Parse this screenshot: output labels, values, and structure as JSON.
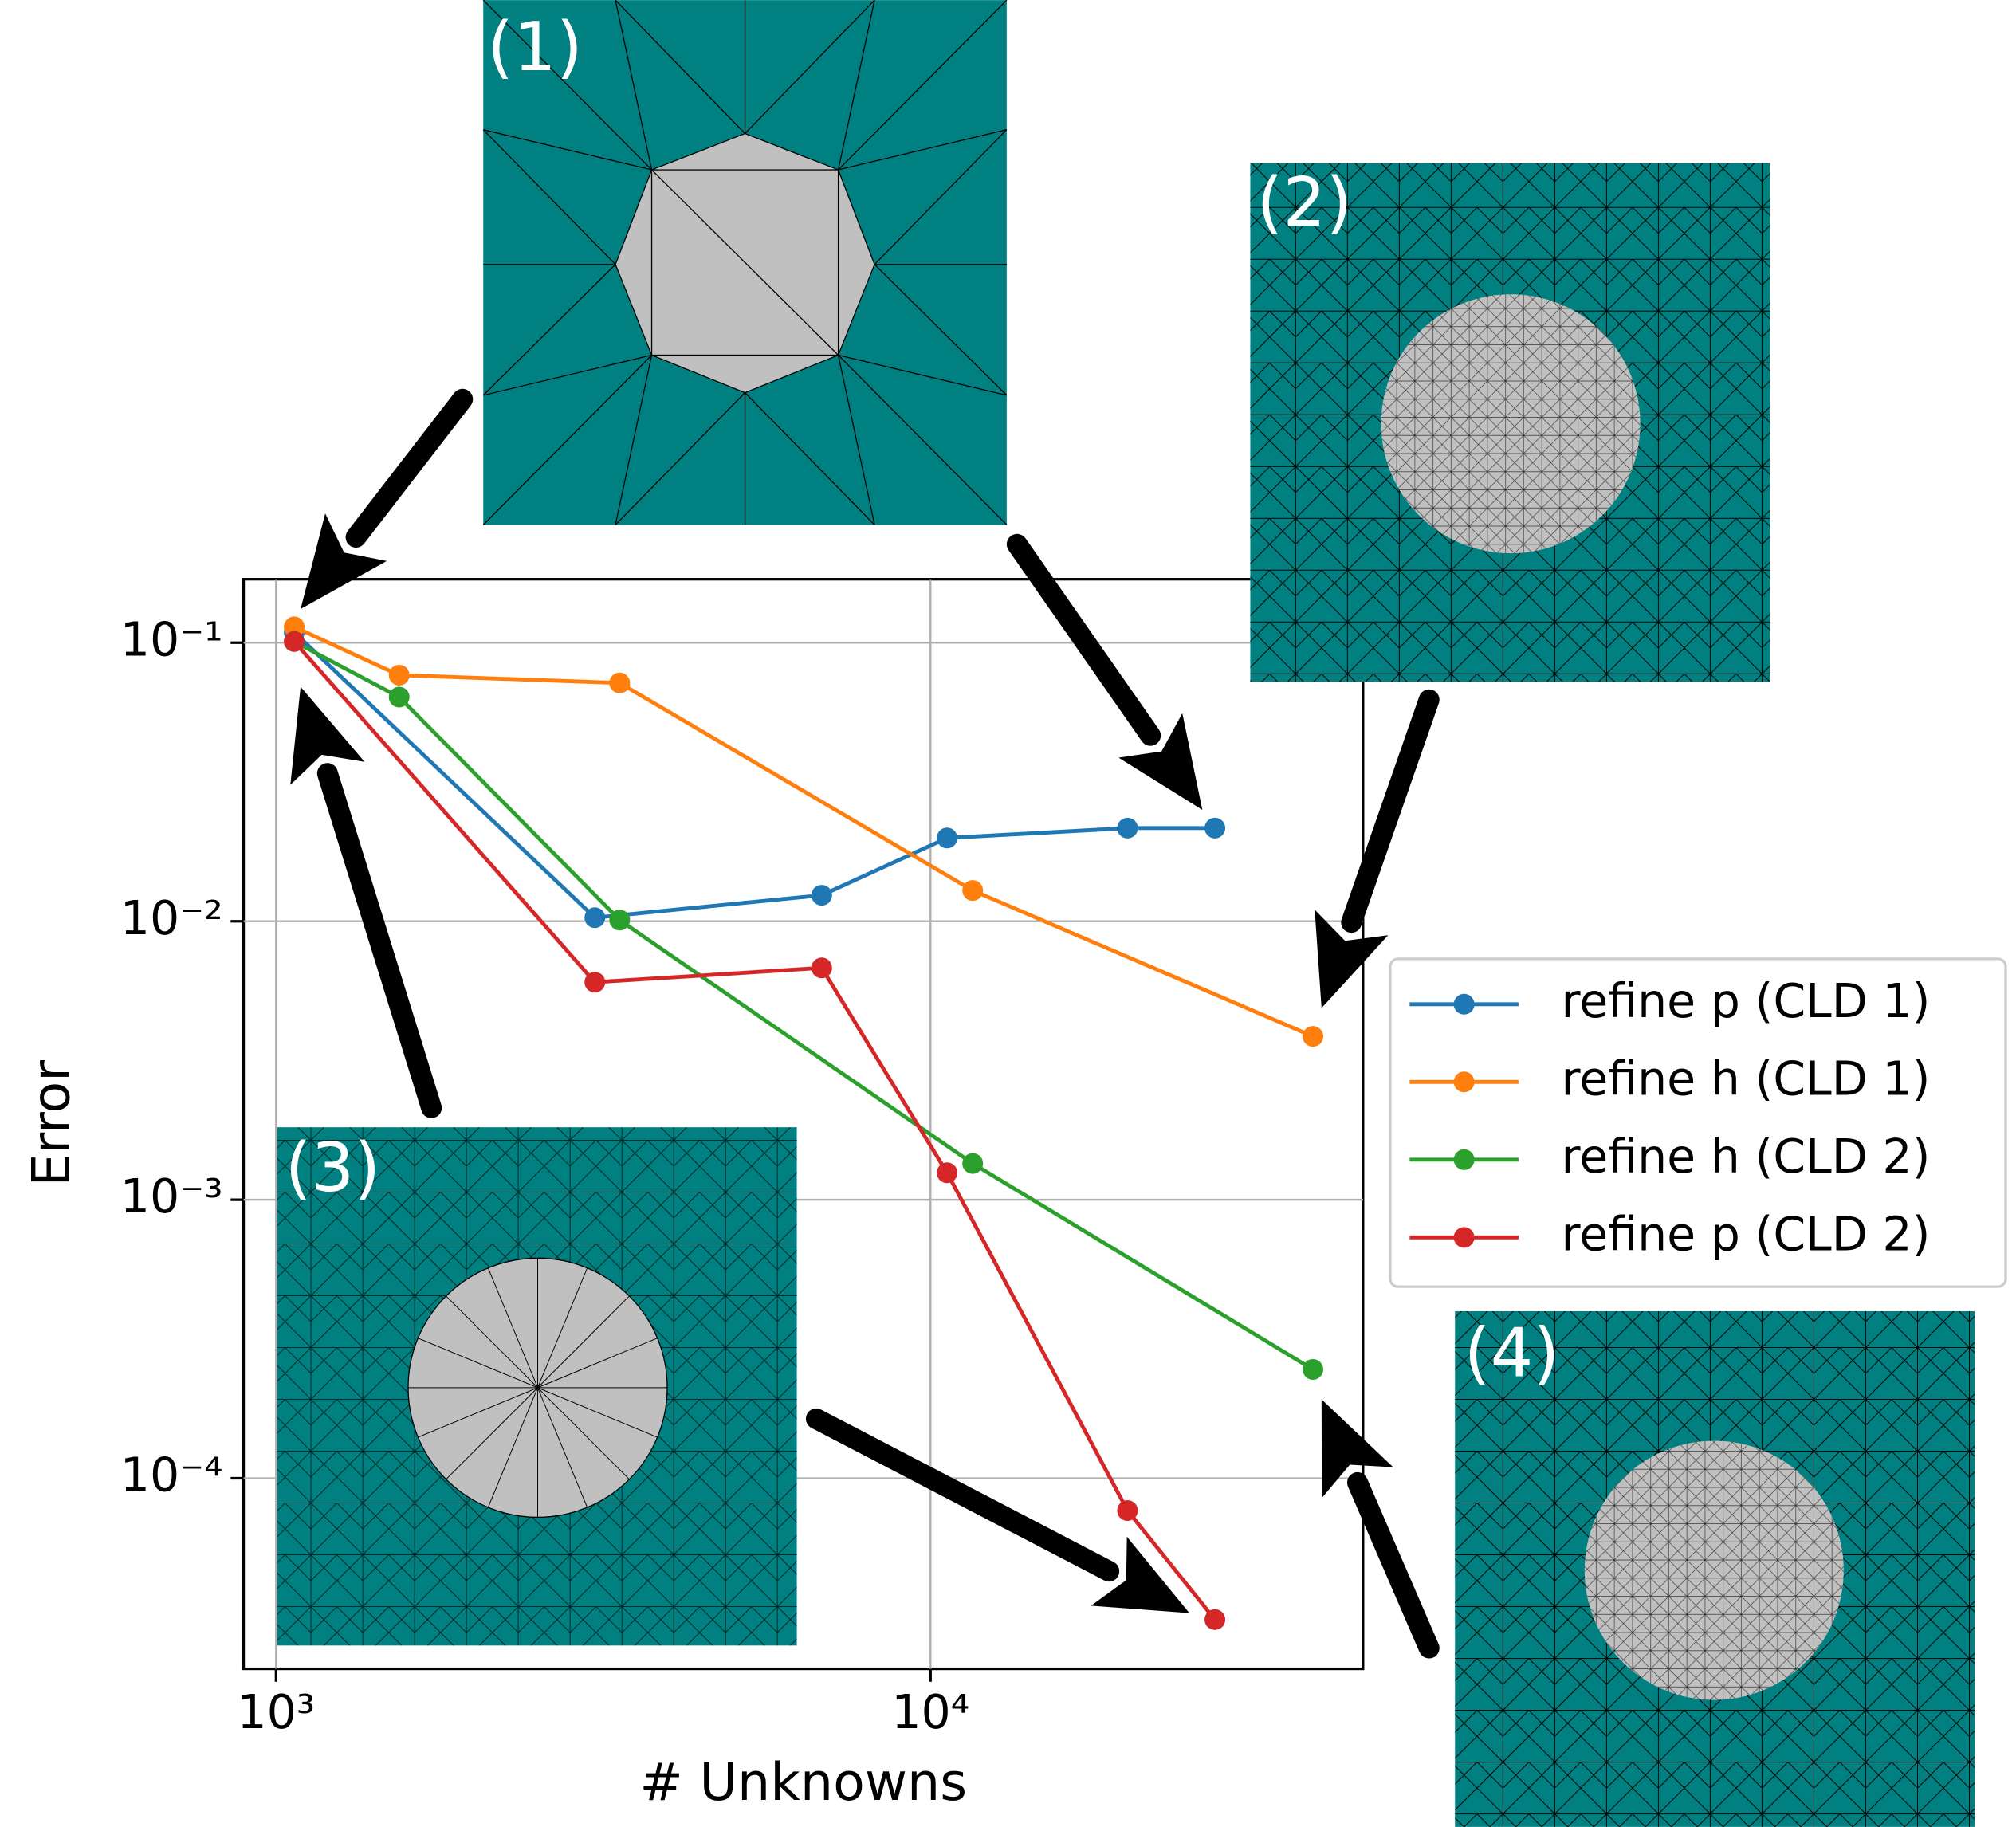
{
  "chart_data": {
    "type": "line",
    "xlabel": "# Unknowns",
    "ylabel": "Error",
    "xscale": "log",
    "yscale": "log",
    "grid": true,
    "legend": "outside right",
    "xlim": [
      892,
      45800
    ],
    "ylim": [
      2.07e-05,
      0.169
    ],
    "xticks": [
      {
        "value": 1000,
        "label": "10³"
      },
      {
        "value": 10000,
        "label": "10⁴"
      }
    ],
    "yticks": [
      {
        "value": 0.1,
        "label": "10⁻¹"
      },
      {
        "value": 0.01,
        "label": "10⁻²"
      },
      {
        "value": 0.001,
        "label": "10⁻³"
      },
      {
        "value": 0.0001,
        "label": "10⁻⁴"
      }
    ],
    "series": [
      {
        "name": "refine p (CLD 1)",
        "color": "#1f77b4",
        "x": [
          1066,
          3070,
          6820,
          10600,
          20000,
          27200
        ],
        "values": [
          0.109,
          0.0103,
          0.0124,
          0.0199,
          0.0216,
          0.0216
        ]
      },
      {
        "name": "refine h (CLD 1)",
        "color": "#ff7f0e",
        "x": [
          1066,
          1542,
          3350,
          11600,
          38400
        ],
        "values": [
          0.114,
          0.0765,
          0.0717,
          0.0129,
          0.00386
        ]
      },
      {
        "name": "refine h (CLD 2)",
        "color": "#2ca02c",
        "x": [
          1066,
          1542,
          3350,
          11600,
          38400
        ],
        "values": [
          0.101,
          0.0638,
          0.0101,
          0.00135,
          0.000246
        ]
      },
      {
        "name": "refine p (CLD 2)",
        "color": "#d62728",
        "x": [
          1066,
          3070,
          6820,
          10600,
          20000,
          27200
        ],
        "values": [
          0.101,
          0.00604,
          0.0068,
          0.00125,
          7.66e-05,
          3.11e-05
        ]
      }
    ]
  },
  "insets": [
    {
      "label": "(1)"
    },
    {
      "label": "(2)"
    },
    {
      "label": "(3)"
    },
    {
      "label": "(4)"
    }
  ]
}
